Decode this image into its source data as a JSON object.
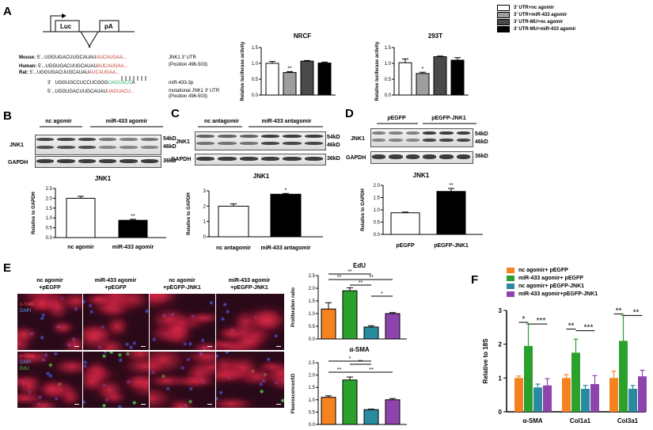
{
  "panel_labels": {
    "a": "A",
    "b": "B",
    "c": "C",
    "d": "D",
    "e": "E",
    "f": "F"
  },
  "panel_a": {
    "construct": {
      "luc": "Luc",
      "pa": "pA"
    },
    "rows": [
      {
        "species": "Mouse:",
        "prefix": "5'...",
        "seq_black": "UGGUGACUUGCAUAU",
        "seq_red": "AUCAUGAA...",
        "note": "JNK1 3' UTR"
      },
      {
        "species": "Human:",
        "prefix": "5'...",
        "seq_black": "UGGUGACUUGCAUAU",
        "seq_red": "AUCAUGAA...",
        "note": "(Position 496-503)"
      },
      {
        "species": "Rat:",
        "prefix": "5'...",
        "seq_black": "UGGUGACUUGCAUAU",
        "seq_red": "AUCAUGAA...",
        "note": ""
      }
    ],
    "mir_prefix": "3'",
    "mir_black": "UGGUGCCUCCUCGGG",
    "mir_green": "UAGUACU",
    "mir_suffix": "A",
    "mir_label": "miR-433-3p",
    "mut_prefix": "5'...",
    "mut_black": "UGGUGACUUGCAUAU",
    "mut_red": "UAGUACU...",
    "mut_label1": "mutational JNK1 3' UTR",
    "mut_label2": "(Position 496-503)",
    "nrcf": {
      "title": "NRCF",
      "ylabel": "Relative luciferase activity",
      "ticks": [
        "0.0",
        "0.5",
        "1.0",
        "1.5"
      ],
      "values": [
        1.0,
        0.71,
        1.07,
        1.01
      ],
      "errors": [
        0.06,
        0.03,
        0.02,
        0.03
      ],
      "sig": [
        "",
        "**",
        "",
        ""
      ]
    },
    "t293": {
      "title": "293T",
      "ylabel": "Relative luciferase activity",
      "ticks": [
        "0.0",
        "0.5",
        "1.0",
        "1.5"
      ],
      "values": [
        1.02,
        0.68,
        1.21,
        1.1
      ],
      "errors": [
        0.12,
        0.04,
        0.02,
        0.08
      ],
      "sig": [
        "",
        "*",
        "",
        ""
      ]
    },
    "legend": [
      "3' UTR+nc agomir",
      "3' UTR+miR-433 agomir",
      "3' UTR-MU+nc agomir",
      "3' UTR-MU+miR-433 agomir"
    ],
    "legend_colors": [
      "#ffffff",
      "#9e9e9e",
      "#4a4a4a",
      "#000000"
    ]
  },
  "panel_b": {
    "groups": [
      "nc agomir",
      "miR-433 agomir"
    ],
    "proteins": [
      "JNK1",
      "GAPDH"
    ],
    "kd": [
      "54kD",
      "46kD",
      "36kD"
    ],
    "chart": {
      "title": "JNK1",
      "ylabel": "Relative to GAPDH",
      "ticks": [
        "0.0",
        "0.5",
        "1.0",
        "1.5",
        "2.0",
        "2.5"
      ],
      "categories": [
        "nc agomir",
        "miR-433 agomir"
      ],
      "values": [
        2.0,
        0.88
      ],
      "errors": [
        0.1,
        0.05
      ],
      "sig": [
        "",
        "**"
      ],
      "colors": [
        "#ffffff",
        "#000000"
      ]
    }
  },
  "panel_c": {
    "groups": [
      "nc antagomir",
      "miR-433 antagomir"
    ],
    "proteins": [
      "JNK1",
      "GAPDH"
    ],
    "kd": [
      "54kD",
      "46kD",
      "36kD"
    ],
    "chart": {
      "title": "JNK1",
      "ylabel": "Relative to GAPDH",
      "ticks": [
        "0",
        "1",
        "2",
        "3"
      ],
      "categories": [
        "nc antagomir",
        "miR-433 antagomir"
      ],
      "values": [
        2.0,
        2.78
      ],
      "errors": [
        0.15,
        0.05
      ],
      "sig": [
        "",
        "*"
      ],
      "colors": [
        "#ffffff",
        "#000000"
      ]
    }
  },
  "panel_d": {
    "groups": [
      "pEGFP",
      "pEGFP-JNK1"
    ],
    "proteins": [
      "JNK1",
      "GAPDH"
    ],
    "kd": [
      "54kD",
      "46kD",
      "36kD"
    ],
    "chart": {
      "title": "JNK1",
      "ylabel": "Relative to GAPDH",
      "ticks": [
        "0.0",
        "0.5",
        "1.0",
        "1.5",
        "2.0"
      ],
      "categories": [
        "pEGFP",
        "pEGFP-JNK1"
      ],
      "values": [
        0.88,
        1.75
      ],
      "errors": [
        0.03,
        0.12
      ],
      "sig": [
        "",
        "**"
      ],
      "colors": [
        "#ffffff",
        "#000000"
      ]
    }
  },
  "panel_e": {
    "columns": [
      [
        "nc agomir",
        "+pEGFP"
      ],
      [
        "miR-433 agomir",
        "+pEGFP"
      ],
      [
        "nc agomir",
        "+pEGFP-JNK1"
      ],
      [
        "miR-433 agomir",
        "+pEGFP-JNK1"
      ]
    ],
    "row1_labels": [
      "α-SMA",
      "DAPI"
    ],
    "row2_labels": [
      "α-SMA",
      "DAPI",
      "EdU"
    ],
    "edu": {
      "title": "EdU",
      "ylabel": "Proliferation ratio",
      "ticks": [
        "0.0",
        "0.5",
        "1.0",
        "1.5",
        "2.0",
        "2.5"
      ],
      "values": [
        1.18,
        1.9,
        0.47,
        1.0
      ],
      "errors": [
        0.25,
        0.12,
        0.05,
        0.04
      ],
      "brackets": [
        "**",
        "**",
        "**",
        "**",
        "*"
      ]
    },
    "asma": {
      "title": "α-SMA",
      "ylabel": "Fluorescence±SD",
      "ticks": [
        "0.0",
        "0.5",
        "1.0",
        "1.5",
        "2.0",
        "2.5"
      ],
      "values": [
        1.1,
        1.8,
        0.6,
        1.0
      ],
      "errors": [
        0.06,
        0.12,
        0.02,
        0.05
      ],
      "brackets": [
        "**",
        "*",
        "**",
        "**"
      ]
    },
    "colors": [
      "#f58220",
      "#2ca02c",
      "#2a8aa0",
      "#8e44ad"
    ]
  },
  "panel_f": {
    "legend": [
      "nc agomir+ pEGFP",
      "miR-433 agomir+ pEGFP",
      "nc agomir+ pEGFP-JNK1",
      "miR-433 agomir+pEGFP-JNK1"
    ],
    "colors": [
      "#f58220",
      "#2ca02c",
      "#2a8aa0",
      "#8e44ad"
    ],
    "ylabel": "Relative to 18S",
    "ticks": [
      "0",
      "1",
      "2",
      "3"
    ],
    "categories": [
      "α-SMA",
      "Col1a1",
      "Col3a1"
    ],
    "series": [
      {
        "values": [
          1.0,
          1.0,
          1.0
        ],
        "errors": [
          0.06,
          0.1,
          0.2
        ]
      },
      {
        "values": [
          1.95,
          1.75,
          2.1
        ],
        "errors": [
          0.65,
          0.4,
          0.75
        ]
      },
      {
        "values": [
          0.72,
          0.68,
          0.68
        ],
        "errors": [
          0.1,
          0.1,
          0.1
        ]
      },
      {
        "values": [
          0.78,
          0.82,
          1.05
        ],
        "errors": [
          0.2,
          0.25,
          0.18
        ]
      }
    ],
    "sig": [
      [
        "*",
        "***"
      ],
      [
        "**",
        "***"
      ],
      [
        "**",
        "**"
      ]
    ]
  }
}
